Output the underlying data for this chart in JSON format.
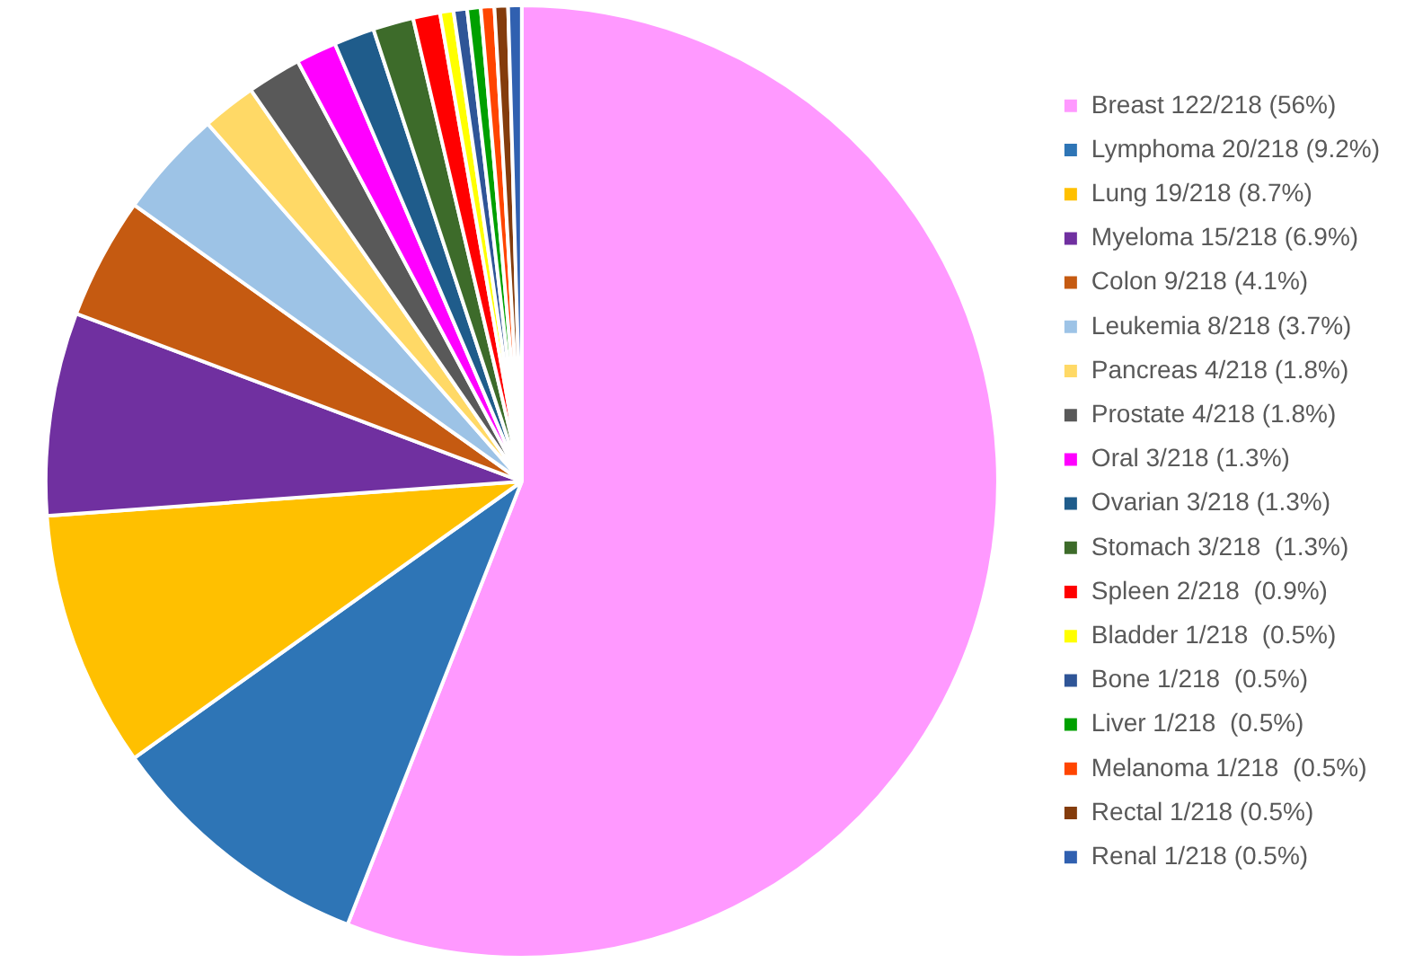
{
  "chart_data": {
    "type": "pie",
    "legend": "right",
    "categories": [
      "Breast 122/218 (56%)",
      "Lymphoma 20/218 (9.2%)",
      "Lung 19/218 (8.7%)",
      "Myeloma 15/218 (6.9%)",
      "Colon 9/218 (4.1%)",
      "Leukemia 8/218 (3.7%)",
      "Pancreas 4/218 (1.8%)",
      "Prostate 4/218 (1.8%)",
      "Oral 3/218 (1.3%)",
      "Ovarian 3/218 (1.3%)",
      "Stomach 3/218  (1.3%)",
      "Spleen 2/218  (0.9%)",
      "Bladder 1/218  (0.5%)",
      "Bone 1/218  (0.5%)",
      "Liver 1/218  (0.5%)",
      "Melanoma 1/218  (0.5%)",
      "Rectal 1/218 (0.5%)",
      "Renal 1/218 (0.5%)"
    ],
    "values": [
      122,
      20,
      19,
      15,
      9,
      8,
      4,
      4,
      3,
      3,
      3,
      2,
      1,
      1,
      1,
      1,
      1,
      1
    ],
    "colors": [
      "#ff99ff",
      "#2e75b6",
      "#ffc000",
      "#7030a0",
      "#c55a11",
      "#9dc3e6",
      "#ffd966",
      "#595959",
      "#ff00ff",
      "#1f5c8b",
      "#3d6b2a",
      "#ff0000",
      "#ffff00",
      "#2f5597",
      "#00a000",
      "#ff4500",
      "#843c0c",
      "#3060b0"
    ]
  }
}
